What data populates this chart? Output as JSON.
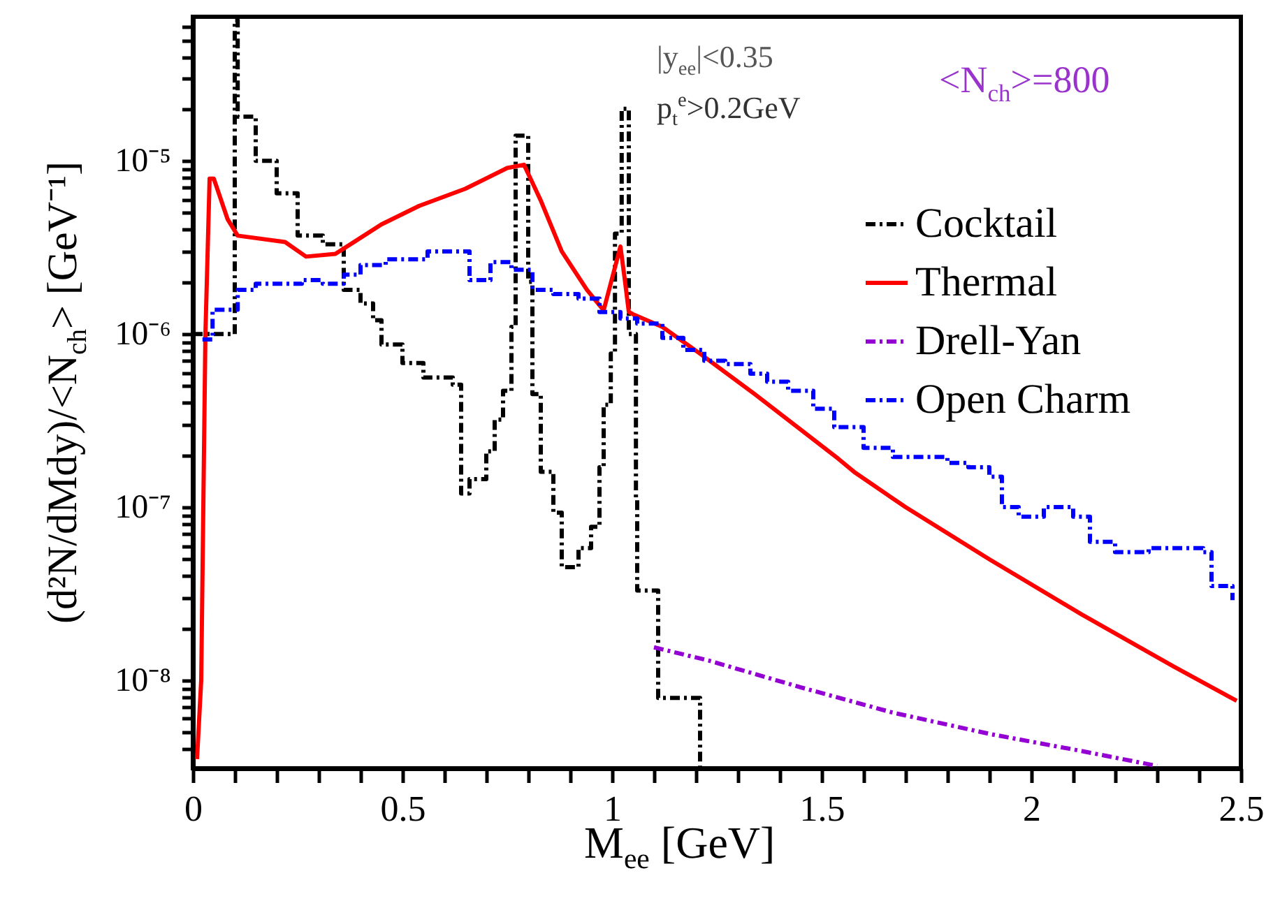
{
  "chart_data": {
    "type": "line",
    "xlabel": "M$_{ee}$ [GeV]",
    "ylabel": "(d²N/dMdy)/<N$_{ch}$> [GeV⁻¹]",
    "annotations": [
      "|y$_{ee}$|<0.35",
      "p$_{t}$$^{e}$>0.2GeV",
      "<N$_{ch}$>=800"
    ],
    "log": "y",
    "legend": "top right",
    "xlim": [
      0,
      2.5
    ],
    "ylim": [
      3.1e-09,
      6.8e-05
    ],
    "xticks": [
      0,
      {
        "value": 0.1,
        "label": null
      },
      {
        "value": 0.2,
        "label": null
      },
      {
        "value": 0.3,
        "label": null
      },
      {
        "value": 0.4,
        "label": null
      },
      0.5,
      {
        "value": 0.6,
        "label": null
      },
      {
        "value": 0.7,
        "label": null
      },
      {
        "value": 0.8,
        "label": null
      },
      {
        "value": 0.9,
        "label": null
      },
      1,
      {
        "value": 1.1,
        "label": null
      },
      {
        "value": 1.2,
        "label": null
      },
      {
        "value": 1.3,
        "label": null
      },
      {
        "value": 1.4,
        "label": null
      },
      1.5,
      {
        "value": 1.6,
        "label": null
      },
      {
        "value": 1.7,
        "label": null
      },
      {
        "value": 1.8,
        "label": null
      },
      {
        "value": 1.9,
        "label": null
      },
      2,
      {
        "value": 2.1,
        "label": null
      },
      {
        "value": 2.2,
        "label": null
      },
      {
        "value": 2.3,
        "label": null
      },
      {
        "value": 2.4,
        "label": null
      },
      2.5
    ],
    "yticks": [
      {
        "value": 4e-09,
        "label": null
      },
      {
        "value": 5e-09,
        "label": null
      },
      {
        "value": 6e-09,
        "label": null
      },
      {
        "value": 7e-09,
        "label": null
      },
      {
        "value": 8e-09,
        "label": null
      },
      {
        "value": 9e-09,
        "label": null
      },
      {
        "value": 1e-08,
        "label": "10⁻⁸"
      },
      {
        "value": 2e-08,
        "label": null
      },
      {
        "value": 3e-08,
        "label": null
      },
      {
        "value": 4e-08,
        "label": null
      },
      {
        "value": 5e-08,
        "label": null
      },
      {
        "value": 6e-08,
        "label": null
      },
      {
        "value": 7e-08,
        "label": null
      },
      {
        "value": 8e-08,
        "label": null
      },
      {
        "value": 9e-08,
        "label": null
      },
      {
        "value": 1e-07,
        "label": "10⁻⁷"
      },
      {
        "value": 2e-07,
        "label": null
      },
      {
        "value": 3e-07,
        "label": null
      },
      {
        "value": 4e-07,
        "label": null
      },
      {
        "value": 5e-07,
        "label": null
      },
      {
        "value": 6e-07,
        "label": null
      },
      {
        "value": 7e-07,
        "label": null
      },
      {
        "value": 8e-07,
        "label": null
      },
      {
        "value": 9e-07,
        "label": null
      },
      {
        "value": 1e-06,
        "label": "10⁻⁶"
      },
      {
        "value": 2e-06,
        "label": null
      },
      {
        "value": 3e-06,
        "label": null
      },
      {
        "value": 4e-06,
        "label": null
      },
      {
        "value": 5e-06,
        "label": null
      },
      {
        "value": 6e-06,
        "label": null
      },
      {
        "value": 7e-06,
        "label": null
      },
      {
        "value": 8e-06,
        "label": null
      },
      {
        "value": 9e-06,
        "label": null
      },
      {
        "value": 1e-05,
        "label": "10⁻⁵"
      },
      {
        "value": 2e-05,
        "label": null
      },
      {
        "value": 3e-05,
        "label": null
      },
      {
        "value": 4e-05,
        "label": null
      },
      {
        "value": 5e-05,
        "label": null
      },
      {
        "value": 6e-05,
        "label": null
      }
    ],
    "series": [
      {
        "name": "Cocktail",
        "type": "step",
        "color": "#000000",
        "line_style": "dashed",
        "x": [
          0.0,
          0.1,
          0.107,
          0.15,
          0.2,
          0.25,
          0.31,
          0.36,
          0.4,
          0.43,
          0.45,
          0.5,
          0.55,
          0.62,
          0.64,
          0.66,
          0.7,
          0.72,
          0.74,
          0.76,
          0.77,
          0.8,
          0.81,
          0.83,
          0.86,
          0.88,
          0.92,
          0.95,
          0.97,
          0.98,
          0.997,
          1.007,
          1.023,
          1.04,
          1.057,
          1.06,
          1.11,
          1.21
        ],
        "values": [
          1e-06,
          6.5e-05,
          1.8e-05,
          1e-05,
          6.5e-06,
          3.7e-06,
          3.3e-06,
          1.8e-06,
          1.5e-06,
          1.2e-06,
          8.7e-07,
          6.8e-07,
          5.6e-07,
          5.1e-07,
          1.2e-07,
          1.45e-07,
          2.1e-07,
          3.2e-07,
          4.7e-07,
          1.1e-06,
          1.4e-05,
          2e-06,
          4.5e-07,
          1.6e-07,
          9.3e-08,
          4.5e-08,
          5.8e-08,
          7.7e-08,
          1.7e-07,
          3.9e-07,
          7.7e-07,
          3.8e-06,
          2e-05,
          1e-06,
          1.1e-07,
          3.3e-08,
          7.9e-09,
          3.1e-09
        ]
      },
      {
        "name": "Thermal",
        "type": "line",
        "color": "#ff0000",
        "line_style": "solid",
        "x": [
          0.01,
          0.02,
          0.03,
          0.04,
          0.05,
          0.083,
          0.107,
          0.22,
          0.27,
          0.34,
          0.45,
          0.54,
          0.65,
          0.75,
          0.79,
          0.83,
          0.88,
          0.94,
          0.98,
          1.02,
          1.03,
          1.04,
          1.05,
          1.12,
          1.21,
          1.34,
          1.45,
          1.54,
          1.58,
          1.7,
          1.9,
          2.12,
          2.34,
          2.49
        ],
        "values": [
          3.5e-09,
          1e-08,
          1e-06,
          7.9e-06,
          7.9e-06,
          4.6e-06,
          3.7e-06,
          3.4e-06,
          2.8e-06,
          2.9e-06,
          4.3e-06,
          5.5e-06,
          6.9e-06,
          9.1e-06,
          9.5e-06,
          5.9e-06,
          3e-06,
          1.8e-06,
          1.37e-06,
          3.2e-06,
          2.1e-06,
          1.34e-06,
          1.3e-06,
          1.1e-06,
          7.7e-07,
          4.5e-07,
          2.8e-07,
          1.9e-07,
          1.58e-07,
          1e-07,
          5e-08,
          2.4e-08,
          1.2e-08,
          7.6e-09
        ]
      },
      {
        "name": "Drell-Yan",
        "type": "line",
        "color": "#9400d3",
        "line_style": "dashed",
        "x": [
          1.1,
          1.23,
          1.45,
          1.67,
          1.9,
          2.12,
          2.3
        ],
        "values": [
          1.55e-08,
          1.3e-08,
          9.1e-09,
          6.5e-09,
          4.9e-09,
          3.9e-09,
          3.2e-09
        ]
      },
      {
        "name": "Open Charm",
        "type": "step",
        "color": "#0000ff",
        "line_style": "dashed",
        "x": [
          0.023,
          0.047,
          0.107,
          0.15,
          0.26,
          0.31,
          0.36,
          0.4,
          0.46,
          0.56,
          0.66,
          0.71,
          0.76,
          0.81,
          0.86,
          0.92,
          0.97,
          1.02,
          1.06,
          1.12,
          1.17,
          1.22,
          1.27,
          1.33,
          1.37,
          1.42,
          1.48,
          1.53,
          1.6,
          1.67,
          1.73,
          1.8,
          1.85,
          1.9,
          1.93,
          1.97,
          2.03,
          2.1,
          2.14,
          2.2,
          2.28,
          2.37,
          2.41,
          2.43,
          2.48
        ],
        "values": [
          9.3e-07,
          1.38e-06,
          1.8e-06,
          1.95e-06,
          2.05e-06,
          1.95e-06,
          2.2e-06,
          2.5e-06,
          2.7e-06,
          3e-06,
          2.05e-06,
          2.6e-06,
          2.35e-06,
          1.8e-06,
          1.7e-06,
          1.6e-06,
          1.34e-06,
          1.23e-06,
          1.15e-06,
          9.5e-07,
          8.1e-07,
          7e-07,
          6.7e-07,
          5.9e-07,
          5.3e-07,
          4.7e-07,
          3.7e-07,
          2.9e-07,
          2.2e-07,
          1.95e-07,
          1.95e-07,
          1.8e-07,
          1.7e-07,
          1.5e-07,
          1e-07,
          8.8e-08,
          1e-07,
          8.8e-08,
          6.3e-08,
          5.5e-08,
          5.8e-08,
          5.8e-08,
          5.5e-08,
          3.5e-08,
          2.9e-08
        ]
      }
    ]
  }
}
